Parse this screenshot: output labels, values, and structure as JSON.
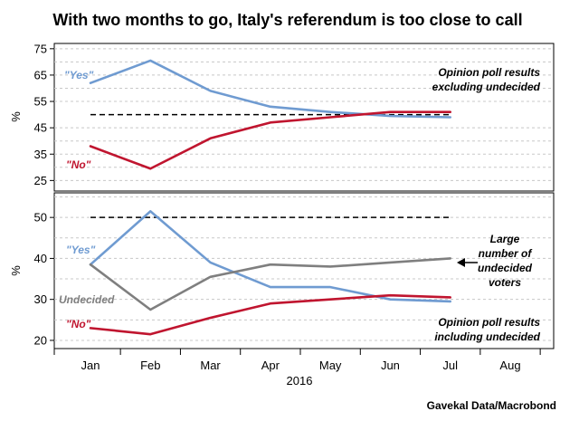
{
  "chart_data": {
    "title": "With two months to go, Italy's referendum is too close to call",
    "source": "Gavekal Data/Macrobond",
    "xlabel": "2016",
    "categories": [
      "Jan",
      "Feb",
      "Mar",
      "Apr",
      "May",
      "Jun",
      "Jul",
      "Aug"
    ],
    "colors": {
      "yes": "#6f9bd1",
      "no": "#c0152f",
      "undecided": "#7f7f7f",
      "threshold": "#000000"
    },
    "panels": [
      {
        "type": "line",
        "ylabel": "%",
        "ylim": [
          21,
          77
        ],
        "yticks": [
          25,
          35,
          45,
          55,
          65,
          75
        ],
        "gridlines": [
          25,
          30,
          35,
          40,
          45,
          55,
          60,
          65,
          70,
          75
        ],
        "threshold": 50,
        "note_lines": [
          "Opinion poll results",
          "excluding undecided"
        ],
        "series": [
          {
            "key": "yes",
            "name": "\"Yes\"",
            "values": [
              62,
              70.5,
              59,
              53,
              51,
              49.5,
              49
            ]
          },
          {
            "key": "no",
            "name": "\"No\"",
            "values": [
              38,
              29.5,
              41,
              47,
              49,
              51,
              51
            ]
          }
        ]
      },
      {
        "type": "line",
        "ylabel": "%",
        "ylim": [
          18,
          56
        ],
        "yticks": [
          20,
          30,
          40,
          50
        ],
        "gridlines": [
          20,
          25,
          30,
          35,
          40,
          45,
          50,
          55
        ],
        "threshold": 50,
        "note_lines": [
          "Opinion poll results",
          "including undecided"
        ],
        "callout_lines": [
          "Large",
          "number of",
          "undecided",
          "voters"
        ],
        "series": [
          {
            "key": "yes",
            "name": "\"Yes\"",
            "values": [
              38.5,
              51.5,
              39,
              33,
              33,
              30,
              29.5
            ]
          },
          {
            "key": "undecided",
            "name": "Undecided",
            "values": [
              38.5,
              27.5,
              35.5,
              38.5,
              38,
              39,
              40
            ]
          },
          {
            "key": "no",
            "name": "\"No\"",
            "values": [
              23,
              21.5,
              25.5,
              29,
              30,
              31,
              30.5
            ]
          }
        ]
      }
    ]
  }
}
